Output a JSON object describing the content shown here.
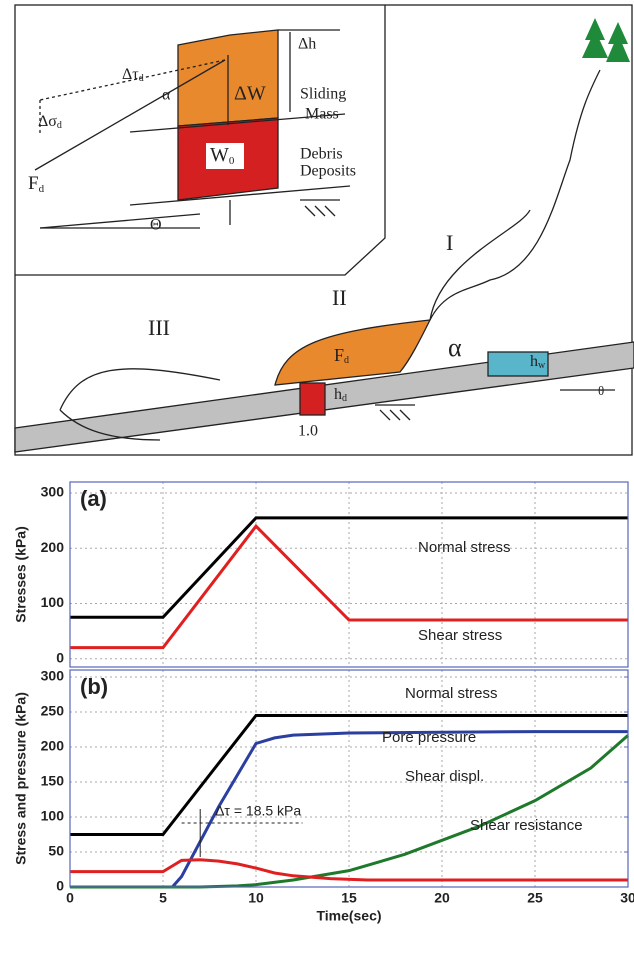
{
  "diagram": {
    "inset": {
      "dh": "Δh",
      "sliding": "Sliding",
      "mass": "Mass",
      "dw": "ΔW",
      "dtau": "Δτ",
      "dtau_sub": "d",
      "alpha": "α",
      "dsigma": "Δσ",
      "dsigma_sub": "d",
      "f": "F",
      "f_sub": "d",
      "w": "W",
      "w_sub": "0",
      "debris": "Debris",
      "deposits": "Deposits",
      "theta": "Θ"
    },
    "main": {
      "i": "I",
      "ii": "II",
      "iii": "III",
      "f": "F",
      "f_sub": "d",
      "alpha": "α",
      "h": "h",
      "h_sub": "d",
      "one": "1.0",
      "hw": "h",
      "hw_sub": "w",
      "theta": "θ"
    }
  },
  "chart_data": [
    {
      "type": "line",
      "panel_label": "(a)",
      "y_label": "Stresses (kPa)",
      "xlim": [
        0,
        30
      ],
      "ylim": [
        -15,
        320
      ],
      "xticks": [
        0,
        5,
        10,
        15,
        20,
        25,
        30
      ],
      "yticks": [
        0,
        100,
        200,
        300
      ],
      "grid": true,
      "series": [
        {
          "name": "Normal stress",
          "color": "#000000",
          "x": [
            0,
            5,
            10,
            30
          ],
          "values": [
            75,
            75,
            255,
            255
          ]
        },
        {
          "name": "Shear stress",
          "color": "#e02020",
          "x": [
            0,
            5,
            10,
            15,
            30
          ],
          "values": [
            20,
            20,
            240,
            70,
            70
          ]
        }
      ]
    },
    {
      "type": "line",
      "panel_label": "(b)",
      "y_label": "Stress and pressure (kPa)",
      "x_label": "Time(sec)",
      "xlim": [
        0,
        30
      ],
      "ylim": [
        0,
        310
      ],
      "y2lim": [
        0,
        93
      ],
      "xticks": [
        0,
        5,
        10,
        15,
        20,
        25,
        30
      ],
      "yticks": [
        0,
        50,
        100,
        150,
        200,
        250,
        300
      ],
      "y2ticks": [
        0,
        15,
        30,
        45,
        60,
        75,
        90
      ],
      "grid": true,
      "annotation": "Δτ = 18.5 kPa",
      "series": [
        {
          "name": "Normal stress",
          "color": "#000000",
          "x": [
            0,
            5,
            10,
            30
          ],
          "values": [
            75,
            75,
            245,
            245
          ]
        },
        {
          "name": "Pore pressure",
          "color": "#2a3fa0",
          "x": [
            0,
            5.5,
            6,
            7,
            8,
            9,
            10,
            11,
            12,
            15,
            20,
            25,
            30
          ],
          "values": [
            0,
            0,
            15,
            65,
            115,
            160,
            205,
            213,
            217,
            220,
            221,
            222,
            222
          ]
        },
        {
          "name": "Shear displ.",
          "color": "#1e7a2a",
          "axis": "y2",
          "x": [
            0,
            7,
            9,
            10,
            12,
            15,
            18,
            20,
            22,
            25,
            28,
            30
          ],
          "values": [
            0,
            0,
            0.5,
            1,
            3,
            7,
            14,
            20,
            26,
            37,
            51,
            65
          ]
        },
        {
          "name": "Shear resistance",
          "color": "#e02020",
          "x": [
            0,
            5,
            5.5,
            6,
            7,
            8,
            9,
            10,
            11,
            12,
            14,
            16,
            20,
            30
          ],
          "values": [
            22,
            22,
            30,
            38,
            39,
            37,
            33,
            27,
            20,
            16,
            12,
            10,
            10,
            10
          ]
        }
      ]
    }
  ]
}
